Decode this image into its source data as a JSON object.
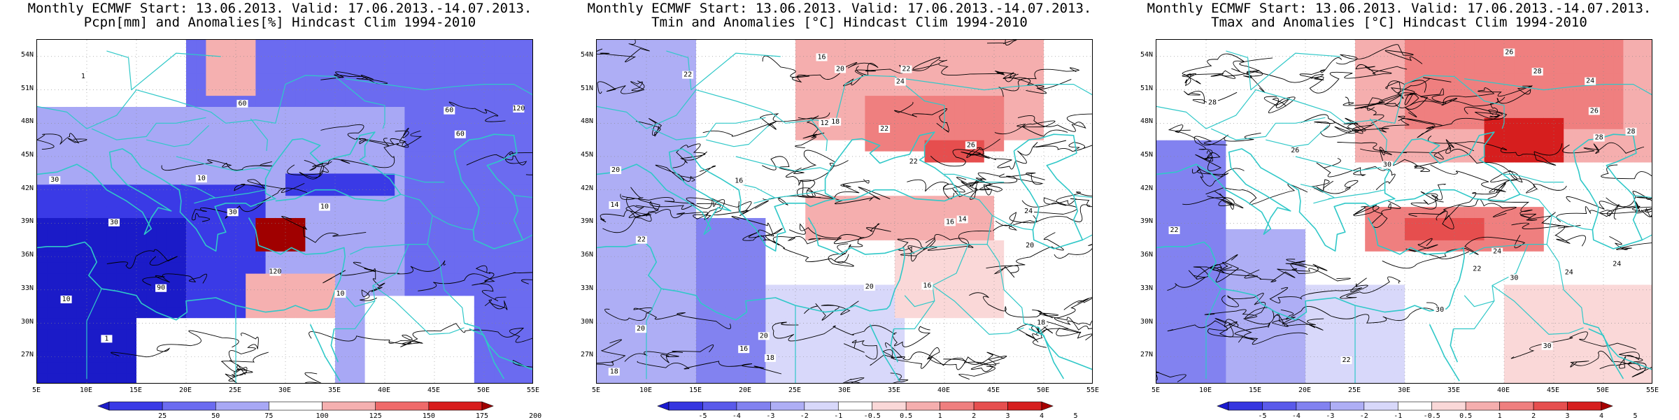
{
  "panels": [
    {
      "title_line1": "Monthly ECMWF Start: 13.06.2013. Valid: 17.06.2013.-14.07.2013.",
      "title_line2": "Pcpn[mm] and Anomalies[%] Hindcast Clim 1994-2010",
      "variable": "precipitation",
      "colorbar_ticks": [
        "25",
        "50",
        "75",
        "100",
        "125",
        "150",
        "175",
        "200"
      ],
      "colorbar_colors": [
        "#1b1bc8",
        "#3a3ae6",
        "#6b6bf0",
        "#a8a8f5",
        "#ffffff",
        "#f5b0b0",
        "#ef6a6a",
        "#d81c1c",
        "#a00000"
      ],
      "contour_labels": [
        "30",
        "60",
        "90",
        "120",
        "10",
        "1",
        "30",
        "60",
        "120",
        "10",
        "1",
        "30",
        "10",
        "60",
        "10"
      ]
    },
    {
      "title_line1": "Monthly ECMWF Start: 13.06.2013. Valid: 17.06.2013.-14.07.2013.",
      "title_line2": "Tmin and Anomalies [°C] Hindcast Clim 1994-2010",
      "variable": "tmin",
      "colorbar_ticks": [
        "-5",
        "-4",
        "-3",
        "-2",
        "-1",
        "-0.5",
        "0.5",
        "1",
        "2",
        "3",
        "4",
        "5"
      ],
      "colorbar_colors": [
        "#1a1ad0",
        "#3535e0",
        "#5a5aea",
        "#8282f0",
        "#aeaef5",
        "#d8d8fa",
        "#ffffff",
        "#fad8d8",
        "#f5aeae",
        "#ef7f7f",
        "#e64e4e",
        "#d61e1e",
        "#a80000"
      ],
      "contour_labels": [
        "14",
        "16",
        "14",
        "12",
        "16",
        "18",
        "20",
        "22",
        "16",
        "18",
        "20",
        "22",
        "20",
        "16",
        "18",
        "22",
        "20",
        "22",
        "24",
        "26",
        "16",
        "18",
        "20",
        "22",
        "24",
        "20"
      ]
    },
    {
      "title_line1": "Monthly ECMWF Start: 13.06.2013. Valid: 17.06.2013.-14.07.2013.",
      "title_line2": "Tmax and Anomalies [°C] Hindcast Clim 1994-2010",
      "variable": "tmax",
      "colorbar_ticks": [
        "-5",
        "-4",
        "-3",
        "-2",
        "-1",
        "-0.5",
        "0.5",
        "1",
        "2",
        "3",
        "4",
        "5"
      ],
      "colorbar_colors": [
        "#1a1ad0",
        "#3535e0",
        "#5a5aea",
        "#8282f0",
        "#aeaef5",
        "#d8d8fa",
        "#ffffff",
        "#fad8d8",
        "#f5aeae",
        "#ef7f7f",
        "#e64e4e",
        "#d61e1e",
        "#a80000"
      ],
      "contour_labels": [
        "22",
        "24",
        "26",
        "28",
        "30",
        "24",
        "22",
        "26",
        "28",
        "30",
        "24",
        "26",
        "28",
        "30",
        "22",
        "24",
        "30",
        "28"
      ]
    }
  ],
  "axes": {
    "lat_labels": [
      "54N",
      "51N",
      "48N",
      "45N",
      "42N",
      "39N",
      "36N",
      "33N",
      "30N",
      "27N"
    ],
    "lon_labels": [
      "5E",
      "10E",
      "15E",
      "20E",
      "25E",
      "30E",
      "35E",
      "40E",
      "45E",
      "50E",
      "55E"
    ]
  }
}
